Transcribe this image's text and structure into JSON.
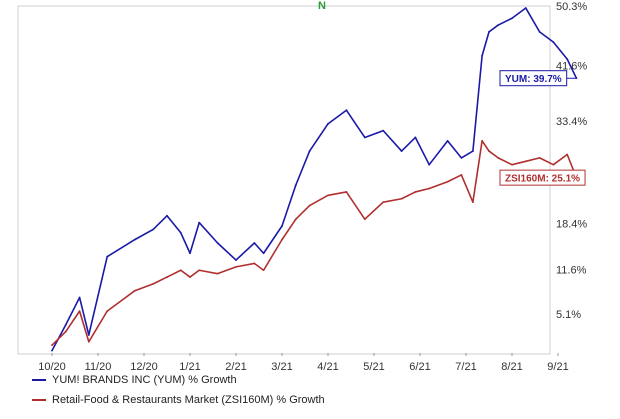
{
  "chart_data": {
    "type": "line",
    "marker_label": "N",
    "x_ticks": [
      "10/20",
      "11/20",
      "12/20",
      "1/21",
      "2/21",
      "3/21",
      "4/21",
      "5/21",
      "6/21",
      "7/21",
      "8/21",
      "9/21"
    ],
    "y_ticks": [
      "50.3%",
      "41.6%",
      "33.4%",
      "18.4%",
      "11.6%",
      "5.1%"
    ],
    "y_tick_values": [
      50.3,
      41.6,
      33.4,
      18.4,
      11.6,
      5.1
    ],
    "ylim": [
      -0.5,
      50.3
    ],
    "grid": false,
    "series": [
      {
        "name": "YUM! BRANDS INC (YUM) % Growth",
        "end_label": "YUM: 39.7%",
        "color": "#1a1aa8",
        "x": [
          0,
          0.3,
          0.6,
          0.8,
          1.2,
          1.8,
          2.2,
          2.5,
          2.8,
          3.0,
          3.2,
          3.6,
          4.0,
          4.4,
          4.6,
          5.0,
          5.3,
          5.6,
          6.0,
          6.4,
          6.8,
          7.2,
          7.6,
          7.9,
          8.2,
          8.6,
          8.9,
          9.15,
          9.35,
          9.5,
          9.7,
          10.0,
          10.3,
          10.6,
          10.9,
          11.2,
          11.4
        ],
        "values": [
          -0.3,
          3.5,
          7.5,
          2.0,
          13.5,
          16.0,
          17.5,
          19.5,
          17.0,
          14.0,
          18.5,
          15.5,
          13.0,
          15.5,
          14.0,
          18.0,
          24.0,
          29.0,
          33.0,
          35.0,
          31.0,
          32.0,
          29.0,
          31.0,
          27.0,
          30.5,
          28.0,
          29.0,
          43.0,
          46.5,
          47.5,
          48.5,
          50.0,
          46.5,
          45.0,
          42.5,
          39.7
        ]
      },
      {
        "name": "Retail-Food & Restaurants Market (ZSI160M) % Growth",
        "end_label": "ZSI160M: 25.1%",
        "color": "#b03030",
        "x": [
          0,
          0.3,
          0.6,
          0.8,
          1.2,
          1.8,
          2.2,
          2.5,
          2.8,
          3.0,
          3.2,
          3.6,
          4.0,
          4.4,
          4.6,
          5.0,
          5.3,
          5.6,
          6.0,
          6.4,
          6.8,
          7.2,
          7.6,
          7.9,
          8.2,
          8.6,
          8.9,
          9.15,
          9.35,
          9.5,
          9.7,
          10.0,
          10.3,
          10.6,
          10.9,
          11.2,
          11.4
        ],
        "values": [
          0.5,
          2.5,
          5.5,
          1.0,
          5.5,
          8.5,
          9.5,
          10.5,
          11.5,
          10.5,
          11.5,
          11.0,
          12.0,
          12.5,
          11.5,
          16.0,
          19.0,
          21.0,
          22.5,
          23.0,
          19.0,
          21.5,
          22.0,
          23.0,
          23.5,
          24.5,
          25.5,
          21.5,
          30.5,
          29.0,
          28.0,
          27.0,
          27.5,
          28.0,
          27.0,
          28.5,
          25.1
        ]
      }
    ]
  }
}
